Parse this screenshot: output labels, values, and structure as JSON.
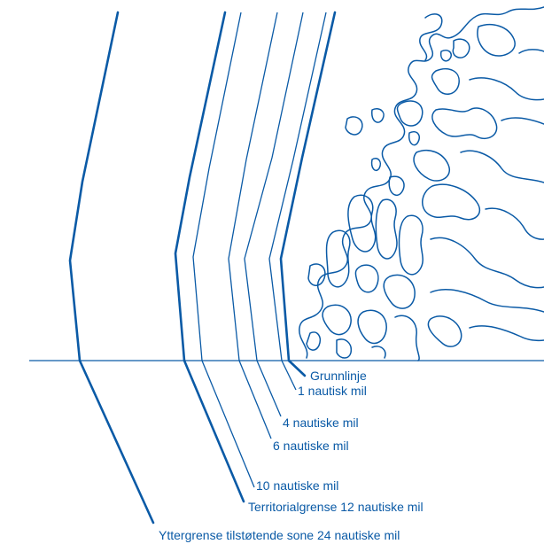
{
  "labels": {
    "baseline": "Grunnlinje",
    "nm1": "1 nautisk mil",
    "nm4": "4 nautiske mil",
    "nm6": "6 nautiske mil",
    "nm10": "10 nautiske mil",
    "territorial": "Territorialgrense 12 nautiske mil",
    "contiguous": "Yttergrense tilstøtende sone 24 nautiske mil"
  },
  "colors": {
    "line": "#0a5aa6",
    "background": "#ffffff"
  }
}
